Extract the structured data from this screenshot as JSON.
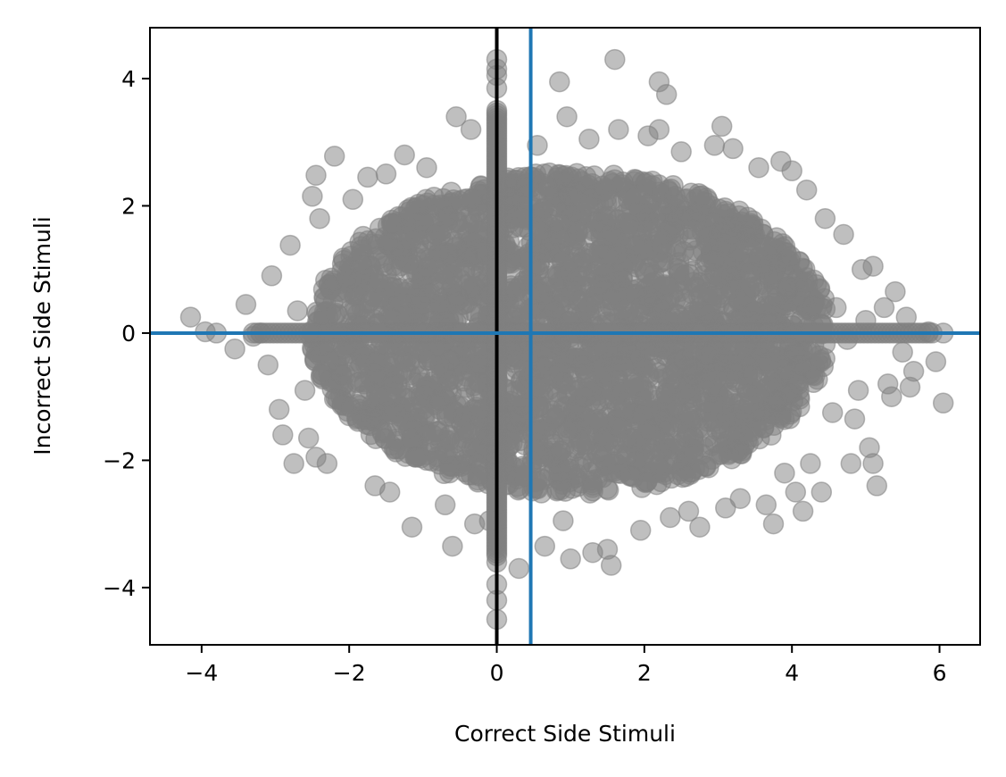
{
  "chart_data": {
    "type": "scatter",
    "title": "",
    "xlabel": "Correct Side Stimuli",
    "ylabel": "Incorrect Side Stimuli",
    "xlim": [
      -4.7,
      6.55
    ],
    "ylim": [
      -4.9,
      4.8
    ],
    "x_ticks": [
      -4,
      -2,
      0,
      2,
      4,
      6
    ],
    "y_ticks": [
      -4,
      -2,
      0,
      2,
      4
    ],
    "x_tick_labels": [
      "−4",
      "−2",
      "0",
      "2",
      "4",
      "6"
    ],
    "y_tick_labels": [
      "−4",
      "−2",
      "0",
      "2",
      "4"
    ],
    "grid": false,
    "point_color": "#808080",
    "point_opacity": 0.5,
    "reference_lines": [
      {
        "orientation": "vertical",
        "value": 0,
        "color": "#000000"
      },
      {
        "orientation": "vertical",
        "value": 0.46,
        "color": "#1f77b4"
      },
      {
        "orientation": "horizontal",
        "value": 0,
        "color": "#1f77b4"
      }
    ],
    "point_cloud": {
      "description_only": false,
      "center_x": 1.0,
      "center_y": 0.0,
      "spread_x": 1.6,
      "spread_y": 1.15
    },
    "outliers": [
      [
        -4.15,
        0.25
      ],
      [
        -3.95,
        0.02
      ],
      [
        -3.8,
        0.0
      ],
      [
        -3.55,
        -0.25
      ],
      [
        -3.4,
        0.45
      ],
      [
        -3.05,
        0.9
      ],
      [
        -3.1,
        -0.5
      ],
      [
        -2.95,
        -1.2
      ],
      [
        -2.9,
        -1.6
      ],
      [
        -2.75,
        -2.05
      ],
      [
        -2.8,
        1.38
      ],
      [
        -2.7,
        0.35
      ],
      [
        -2.6,
        -0.9
      ],
      [
        -2.55,
        -1.65
      ],
      [
        -2.45,
        2.48
      ],
      [
        -2.5,
        2.15
      ],
      [
        -2.4,
        1.8
      ],
      [
        -2.45,
        -1.95
      ],
      [
        -2.2,
        2.78
      ],
      [
        -2.3,
        -2.05
      ],
      [
        -2.0,
        -1.3
      ],
      [
        -1.95,
        2.1
      ],
      [
        -1.75,
        2.45
      ],
      [
        -1.65,
        -2.4
      ],
      [
        -1.5,
        2.5
      ],
      [
        -1.45,
        -2.5
      ],
      [
        -1.25,
        2.8
      ],
      [
        -1.15,
        -3.05
      ],
      [
        -0.95,
        2.6
      ],
      [
        -0.7,
        -2.7
      ],
      [
        -0.55,
        3.4
      ],
      [
        -0.6,
        -3.35
      ],
      [
        -0.35,
        3.2
      ],
      [
        -0.3,
        -3.0
      ],
      [
        -0.1,
        -2.95
      ],
      [
        0.0,
        4.3
      ],
      [
        0.0,
        4.15
      ],
      [
        0.0,
        4.05
      ],
      [
        0.0,
        3.85
      ],
      [
        0.0,
        3.5
      ],
      [
        0.0,
        -3.6
      ],
      [
        0.0,
        -3.95
      ],
      [
        0.0,
        -4.2
      ],
      [
        0.0,
        -4.5
      ],
      [
        0.3,
        -3.7
      ],
      [
        0.55,
        2.95
      ],
      [
        0.65,
        -3.35
      ],
      [
        0.85,
        3.95
      ],
      [
        0.95,
        3.4
      ],
      [
        0.9,
        -2.95
      ],
      [
        1.0,
        -3.55
      ],
      [
        1.25,
        3.05
      ],
      [
        1.3,
        -3.45
      ],
      [
        1.5,
        -3.4
      ],
      [
        1.55,
        -3.65
      ],
      [
        1.6,
        4.3
      ],
      [
        1.65,
        3.2
      ],
      [
        1.95,
        -3.1
      ],
      [
        2.05,
        3.1
      ],
      [
        2.2,
        3.95
      ],
      [
        2.3,
        3.75
      ],
      [
        2.2,
        3.2
      ],
      [
        2.35,
        -2.9
      ],
      [
        2.5,
        2.85
      ],
      [
        2.6,
        -2.8
      ],
      [
        2.75,
        -3.05
      ],
      [
        2.95,
        2.95
      ],
      [
        3.05,
        3.25
      ],
      [
        3.1,
        -2.75
      ],
      [
        3.2,
        2.9
      ],
      [
        3.3,
        -2.6
      ],
      [
        3.55,
        2.6
      ],
      [
        3.65,
        -2.7
      ],
      [
        3.75,
        -3.0
      ],
      [
        3.85,
        2.7
      ],
      [
        3.9,
        -2.2
      ],
      [
        4.0,
        2.55
      ],
      [
        4.05,
        -2.5
      ],
      [
        4.15,
        -2.8
      ],
      [
        4.2,
        2.25
      ],
      [
        4.25,
        -2.05
      ],
      [
        4.4,
        -2.5
      ],
      [
        4.45,
        1.8
      ],
      [
        4.55,
        -1.25
      ],
      [
        4.7,
        1.55
      ],
      [
        4.85,
        -1.35
      ],
      [
        4.8,
        -2.05
      ],
      [
        4.95,
        1.0
      ],
      [
        4.9,
        -0.9
      ],
      [
        5.1,
        1.05
      ],
      [
        5.05,
        -1.8
      ],
      [
        5.1,
        -2.05
      ],
      [
        5.15,
        -2.4
      ],
      [
        5.25,
        0.4
      ],
      [
        5.3,
        -0.8
      ],
      [
        5.35,
        -1.0
      ],
      [
        5.4,
        0.65
      ],
      [
        5.5,
        -0.3
      ],
      [
        5.55,
        0.25
      ],
      [
        5.6,
        -0.85
      ],
      [
        5.65,
        -0.6
      ],
      [
        5.85,
        0.02
      ],
      [
        5.95,
        -0.45
      ],
      [
        6.05,
        0.0
      ],
      [
        6.05,
        -1.1
      ],
      [
        4.6,
        0.4
      ],
      [
        4.75,
        -0.1
      ],
      [
        5.0,
        0.2
      ],
      [
        -3.2,
        0.0
      ],
      [
        -3.3,
        -0.05
      ]
    ]
  }
}
